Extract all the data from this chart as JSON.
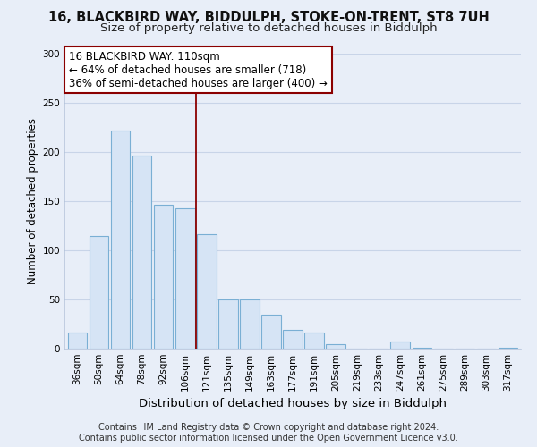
{
  "title": "16, BLACKBIRD WAY, BIDDULPH, STOKE-ON-TRENT, ST8 7UH",
  "subtitle": "Size of property relative to detached houses in Biddulph",
  "xlabel": "Distribution of detached houses by size in Biddulph",
  "ylabel": "Number of detached properties",
  "bar_labels": [
    "36sqm",
    "50sqm",
    "64sqm",
    "78sqm",
    "92sqm",
    "106sqm",
    "121sqm",
    "135sqm",
    "149sqm",
    "163sqm",
    "177sqm",
    "191sqm",
    "205sqm",
    "219sqm",
    "233sqm",
    "247sqm",
    "261sqm",
    "275sqm",
    "289sqm",
    "303sqm",
    "317sqm"
  ],
  "bar_heights": [
    16,
    115,
    222,
    196,
    146,
    143,
    116,
    50,
    50,
    35,
    19,
    16,
    5,
    0,
    0,
    7,
    1,
    0,
    0,
    0,
    1
  ],
  "bar_facecolor": "#d6e4f5",
  "bar_edgecolor": "#7aafd4",
  "vline_x": 5.5,
  "vline_color": "#8b0000",
  "annotation_line1": "16 BLACKBIRD WAY: 110sqm",
  "annotation_line2": "← 64% of detached houses are smaller (718)",
  "annotation_line3": "36% of semi-detached houses are larger (400) →",
  "ylim": [
    0,
    300
  ],
  "yticks": [
    0,
    50,
    100,
    150,
    200,
    250,
    300
  ],
  "footer_line1": "Contains HM Land Registry data © Crown copyright and database right 2024.",
  "footer_line2": "Contains public sector information licensed under the Open Government Licence v3.0.",
  "bg_color": "#e8eef8",
  "plot_bg_color": "#e8eef8",
  "grid_color": "#c8d4e8",
  "title_fontsize": 10.5,
  "subtitle_fontsize": 9.5,
  "xlabel_fontsize": 9.5,
  "ylabel_fontsize": 8.5,
  "tick_fontsize": 7.5,
  "footer_fontsize": 7,
  "annotation_fontsize": 8.5
}
